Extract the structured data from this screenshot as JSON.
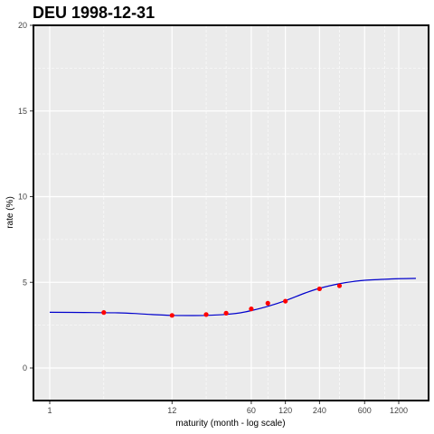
{
  "chart_data": {
    "type": "line",
    "title": "DEU 1998-12-31",
    "xlabel": "maturity (month - log scale)",
    "ylabel": "rate (%)",
    "x_scale": "log",
    "xlim": [
      1,
      1200
    ],
    "ylim": [
      -2,
      20
    ],
    "x_ticks": [
      1,
      12,
      60,
      120,
      240,
      600,
      1200
    ],
    "x_tick_labels": [
      "1",
      "12",
      "60",
      "120",
      "240",
      "600",
      "1200"
    ],
    "y_ticks": [
      0,
      5,
      10,
      15,
      20
    ],
    "y_tick_labels": [
      "0",
      "5",
      "10",
      "15",
      "20"
    ],
    "grid": true,
    "colors": {
      "panel": "#ebebeb",
      "grid": "#ffffff",
      "curve": "#0000cc",
      "points": "#ff0000",
      "border": "#000000"
    },
    "series": [
      {
        "type": "line",
        "x": [
          1,
          2,
          4,
          6,
          8,
          12,
          18,
          24,
          36,
          48,
          60,
          84,
          120,
          180,
          240,
          360,
          480,
          600,
          900,
          1200,
          1700
        ],
        "values": [
          3.25,
          3.24,
          3.22,
          3.17,
          3.12,
          3.07,
          3.06,
          3.07,
          3.13,
          3.22,
          3.35,
          3.6,
          3.93,
          4.38,
          4.65,
          4.92,
          5.05,
          5.12,
          5.18,
          5.21,
          5.23
        ]
      },
      {
        "type": "scatter",
        "x": [
          3,
          12,
          24,
          36,
          60,
          84,
          120,
          240,
          360
        ],
        "values": [
          3.24,
          3.07,
          3.12,
          3.2,
          3.45,
          3.78,
          3.9,
          4.62,
          4.8
        ]
      }
    ]
  }
}
